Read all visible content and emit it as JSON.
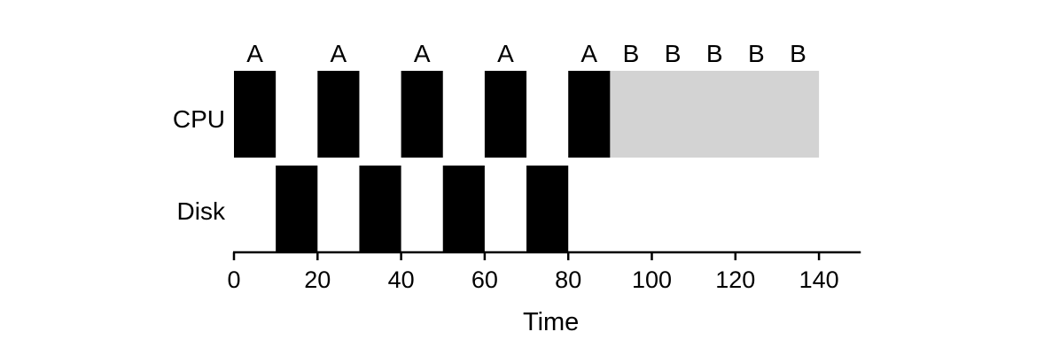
{
  "chart_data": {
    "type": "timeline",
    "title": "",
    "xlabel": "Time",
    "ylabel": "",
    "xlim": [
      0,
      150
    ],
    "xticks": [
      0,
      20,
      40,
      60,
      80,
      100,
      120,
      140
    ],
    "grid": false,
    "rows": [
      "CPU",
      "Disk"
    ],
    "bars": [
      {
        "row": "CPU",
        "start": 0,
        "end": 10,
        "label": "A",
        "color": "#000000"
      },
      {
        "row": "CPU",
        "start": 20,
        "end": 30,
        "label": "A",
        "color": "#000000"
      },
      {
        "row": "CPU",
        "start": 40,
        "end": 50,
        "label": "A",
        "color": "#000000"
      },
      {
        "row": "CPU",
        "start": 60,
        "end": 70,
        "label": "A",
        "color": "#000000"
      },
      {
        "row": "CPU",
        "start": 80,
        "end": 90,
        "label": "A",
        "color": "#000000"
      },
      {
        "row": "CPU",
        "start": 90,
        "end": 140,
        "label": "",
        "color": "#d3d3d3"
      },
      {
        "row": "Disk",
        "start": 10,
        "end": 20,
        "label": "",
        "color": "#000000"
      },
      {
        "row": "Disk",
        "start": 30,
        "end": 40,
        "label": "",
        "color": "#000000"
      },
      {
        "row": "Disk",
        "start": 50,
        "end": 60,
        "label": "",
        "color": "#000000"
      },
      {
        "row": "Disk",
        "start": 70,
        "end": 80,
        "label": "",
        "color": "#000000"
      }
    ],
    "annotations": [
      {
        "text": "B",
        "x": 95,
        "row": "CPU"
      },
      {
        "text": "B",
        "x": 105,
        "row": "CPU"
      },
      {
        "text": "B",
        "x": 115,
        "row": "CPU"
      },
      {
        "text": "B",
        "x": 125,
        "row": "CPU"
      },
      {
        "text": "B",
        "x": 135,
        "row": "CPU"
      }
    ]
  }
}
